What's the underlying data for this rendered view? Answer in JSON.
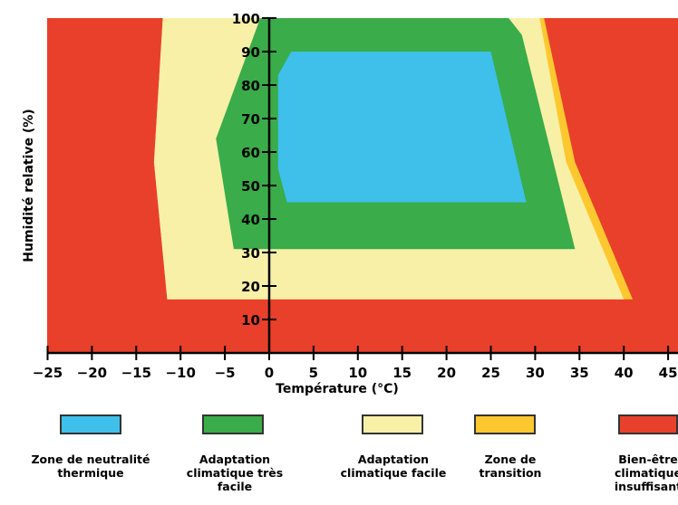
{
  "chart_data": {
    "type": "area",
    "xlabel": "Température (°C)",
    "ylabel": "Humidité relative (%)",
    "xlim": [
      -25,
      45
    ],
    "ylim": [
      0,
      100
    ],
    "x_ticks": [
      "-25",
      "-20",
      "-15",
      "-10",
      "-5",
      "0",
      "5",
      "10",
      "15",
      "20",
      "25",
      "30",
      "35",
      "40",
      "45"
    ],
    "y_ticks": [
      "10",
      "20",
      "30",
      "40",
      "50",
      "60",
      "70",
      "80",
      "90",
      "100"
    ],
    "zones": [
      {
        "name": "Bien-être climatique insuffisant",
        "color": "#e8402b",
        "polygon": [
          [
            -25,
            0
          ],
          [
            45,
            0
          ],
          [
            45,
            100
          ],
          [
            -25,
            100
          ]
        ]
      },
      {
        "name": "Zone de transition",
        "color": "#fdc82f",
        "polygon": [
          [
            -11.5,
            16
          ],
          [
            41,
            16
          ],
          [
            34.5,
            57
          ],
          [
            31,
            100
          ],
          [
            -12,
            100
          ],
          [
            -13,
            57
          ]
        ]
      },
      {
        "name": "Adaptation climatique facile",
        "color": "#f9f0a8",
        "polygon": [
          [
            -11.5,
            16
          ],
          [
            40,
            16
          ],
          [
            33.5,
            57
          ],
          [
            30.5,
            100
          ],
          [
            -12,
            100
          ],
          [
            -13,
            57
          ]
        ]
      },
      {
        "name": "Adaptation climatique très facile",
        "color": "#3aac49",
        "polygon": [
          [
            -4,
            31
          ],
          [
            34.5,
            31
          ],
          [
            28.5,
            95
          ],
          [
            27,
            100
          ],
          [
            -1,
            100
          ],
          [
            -6,
            64
          ],
          [
            -4,
            31
          ]
        ]
      },
      {
        "name": "Zone de neutralité thermique",
        "color": "#3ec0ea",
        "polygon": [
          [
            2,
            45
          ],
          [
            29,
            45
          ],
          [
            25,
            90
          ],
          [
            2.5,
            90
          ],
          [
            1,
            83
          ],
          [
            1,
            55
          ],
          [
            2,
            45
          ]
        ]
      }
    ]
  },
  "legend": [
    {
      "label_lines": [
        "Zone de neutralité",
        "thermique"
      ],
      "color": "#3ec0ea"
    },
    {
      "label_lines": [
        "Adaptation",
        "climatique très",
        "facile"
      ],
      "color": "#3aac49"
    },
    {
      "label_lines": [
        "Adaptation",
        "climatique facile"
      ],
      "color": "#f9f0a8"
    },
    {
      "label_lines": [
        "Zone de",
        "transition"
      ],
      "color": "#fdc82f"
    },
    {
      "label_lines": [
        "Bien-être",
        "climatique",
        "insuffisant"
      ],
      "color": "#e8402b"
    }
  ]
}
